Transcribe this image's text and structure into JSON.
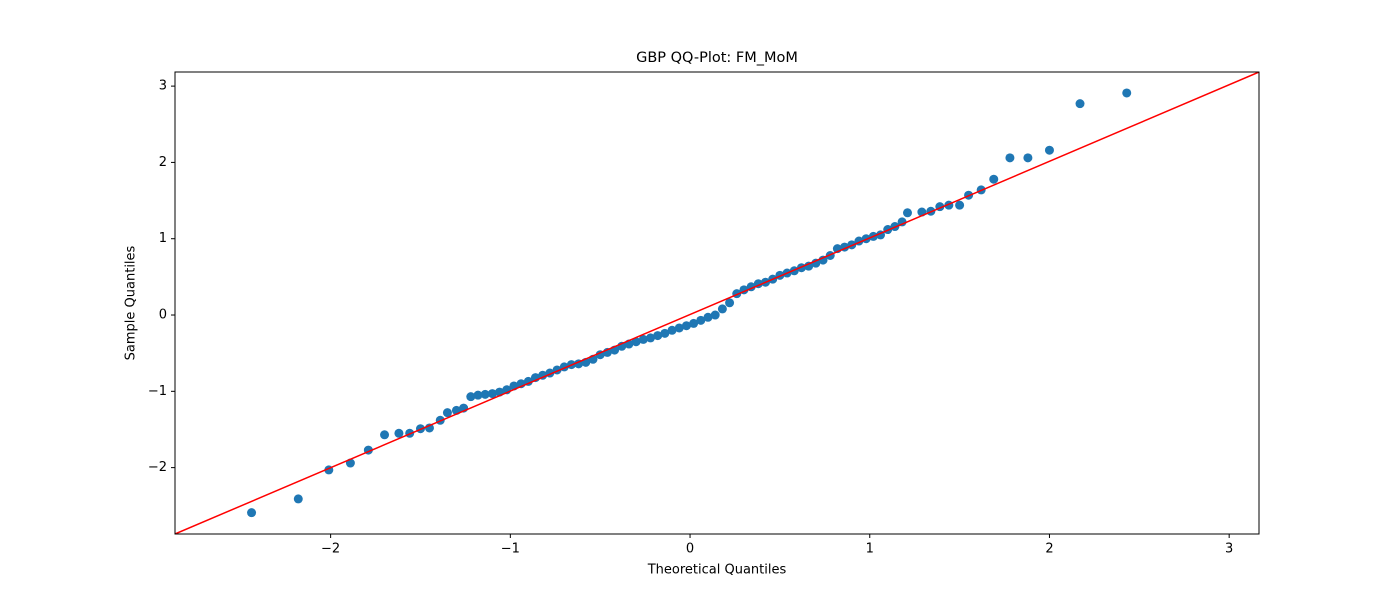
{
  "chart_data": {
    "type": "scatter",
    "title": "GBP QQ-Plot: FM_MoM",
    "x_label": "Theoretical Quantiles",
    "y_label": "Sample Quantiles",
    "xlim": [
      -2.866,
      3.166
    ],
    "ylim": [
      -2.87,
      3.185
    ],
    "xticks": [
      {
        "value": -2,
        "label": "−2"
      },
      {
        "value": -1,
        "label": "−1"
      },
      0,
      1,
      2,
      3
    ],
    "yticks": [
      {
        "value": -2,
        "label": "−2"
      },
      {
        "value": -1,
        "label": "−1"
      },
      0,
      1,
      2,
      3
    ],
    "series": [
      {
        "kind": "points",
        "color": "#1f77b4",
        "x": [
          -2.44,
          -2.18,
          -2.01,
          -1.89,
          -1.79,
          -1.7,
          -1.62,
          -1.56,
          -1.5,
          -1.45,
          -1.39,
          -1.35,
          -1.3,
          -1.26,
          -1.22,
          -1.18,
          -1.14,
          -1.1,
          -1.06,
          -1.02,
          -0.98,
          -0.94,
          -0.9,
          -0.86,
          -0.82,
          -0.78,
          -0.74,
          -0.7,
          -0.66,
          -0.62,
          -0.58,
          -0.54,
          -0.5,
          -0.46,
          -0.42,
          -0.38,
          -0.34,
          -0.3,
          -0.26,
          -0.22,
          -0.18,
          -0.14,
          -0.1,
          -0.06,
          -0.02,
          0.02,
          0.06,
          0.1,
          0.14,
          0.18,
          0.22,
          0.26,
          0.3,
          0.34,
          0.38,
          0.42,
          0.46,
          0.5,
          0.54,
          0.58,
          0.62,
          0.66,
          0.7,
          0.74,
          0.78,
          0.82,
          0.86,
          0.9,
          0.94,
          0.98,
          1.02,
          1.06,
          1.1,
          1.14,
          1.18,
          1.21,
          1.29,
          1.34,
          1.39,
          1.44,
          1.5,
          1.55,
          1.62,
          1.69,
          1.78,
          1.88,
          2.0,
          2.17,
          2.43
        ],
        "values": [
          -2.59,
          -2.41,
          -2.03,
          -1.94,
          -1.77,
          -1.57,
          -1.55,
          -1.55,
          -1.49,
          -1.48,
          -1.38,
          -1.28,
          -1.25,
          -1.22,
          -1.07,
          -1.05,
          -1.04,
          -1.03,
          -1.01,
          -0.98,
          -0.93,
          -0.9,
          -0.87,
          -0.82,
          -0.79,
          -0.76,
          -0.72,
          -0.68,
          -0.65,
          -0.64,
          -0.62,
          -0.58,
          -0.52,
          -0.49,
          -0.46,
          -0.41,
          -0.38,
          -0.35,
          -0.32,
          -0.3,
          -0.27,
          -0.24,
          -0.2,
          -0.17,
          -0.14,
          -0.11,
          -0.07,
          -0.03,
          0.0,
          0.08,
          0.16,
          0.28,
          0.33,
          0.37,
          0.41,
          0.43,
          0.47,
          0.52,
          0.55,
          0.58,
          0.62,
          0.64,
          0.68,
          0.72,
          0.78,
          0.87,
          0.89,
          0.92,
          0.97,
          1.0,
          1.03,
          1.05,
          1.12,
          1.16,
          1.22,
          1.34,
          1.35,
          1.36,
          1.42,
          1.44,
          1.44,
          1.57,
          1.64,
          1.78,
          2.06,
          2.06,
          2.16,
          2.77,
          2.91
        ]
      },
      {
        "kind": "line",
        "color": "#ff0000",
        "x": [
          -2.866,
          3.166
        ],
        "values": [
          -2.87,
          3.185
        ]
      }
    ]
  }
}
